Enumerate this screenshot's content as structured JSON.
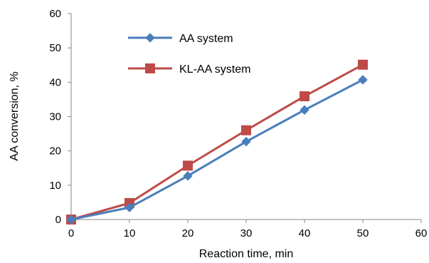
{
  "chart_data": {
    "type": "line",
    "title": "",
    "xlabel": "Reaction time, min",
    "ylabel": "AA conversion, %",
    "xlim": [
      0,
      60
    ],
    "ylim": [
      0,
      60
    ],
    "xticks": [
      0,
      10,
      20,
      30,
      40,
      50,
      60
    ],
    "yticks": [
      0,
      10,
      20,
      30,
      40,
      50,
      60
    ],
    "grid": false,
    "legend_position": "top-left",
    "series": [
      {
        "name": "AA system",
        "color": "#4a7ebb",
        "marker": "diamond",
        "x": [
          0,
          10,
          20,
          30,
          40,
          50
        ],
        "y": [
          0,
          3.5,
          12.7,
          22.7,
          31.9,
          40.7
        ]
      },
      {
        "name": "KL-AA system",
        "color": "#be4b48",
        "marker": "square",
        "x": [
          0,
          10,
          20,
          30,
          40,
          50
        ],
        "y": [
          0,
          4.8,
          15.7,
          26.0,
          35.9,
          45.1
        ]
      }
    ]
  }
}
